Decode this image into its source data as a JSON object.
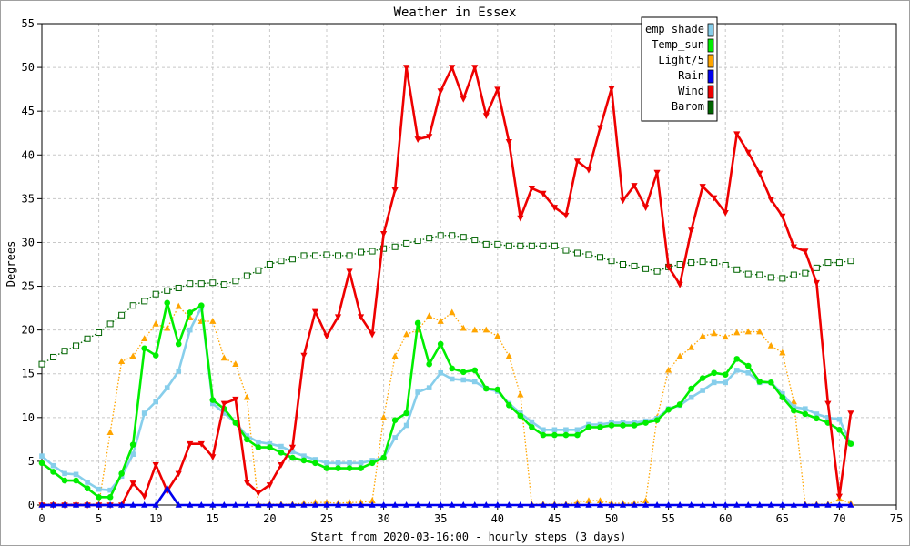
{
  "chart_data": {
    "type": "line",
    "title": "Weather in Essex",
    "xlabel": "Start from 2020-03-16:00 - hourly steps (3 days)",
    "ylabel": "Degrees",
    "xlim": [
      0,
      75
    ],
    "ylim": [
      0,
      55
    ],
    "xticks": [
      0,
      5,
      10,
      15,
      20,
      25,
      30,
      35,
      40,
      45,
      50,
      55,
      60,
      65,
      70,
      75
    ],
    "yticks": [
      0,
      5,
      10,
      15,
      20,
      25,
      30,
      35,
      40,
      45,
      50,
      55
    ],
    "grid": true,
    "legend_position": "top-right",
    "series": [
      {
        "name": "Temp_shade",
        "color": "#87ceeb",
        "marker": "square",
        "line_style": "solid",
        "values": [
          5.6,
          4.5,
          3.6,
          3.5,
          2.6,
          1.8,
          1.7,
          3.3,
          5.8,
          10.5,
          11.8,
          13.4,
          15.3,
          20.0,
          22.6,
          11.6,
          10.5,
          9.4,
          7.9,
          7.2,
          7.0,
          6.7,
          6.1,
          5.6,
          5.2,
          4.8,
          4.8,
          4.8,
          4.8,
          5.1,
          5.4,
          7.7,
          9.1,
          12.9,
          13.4,
          15.1,
          14.4,
          14.3,
          14.1,
          13.3,
          13.0,
          11.6,
          10.5,
          9.5,
          8.6,
          8.6,
          8.6,
          8.6,
          9.2,
          9.2,
          9.4,
          9.4,
          9.4,
          9.6,
          9.9,
          11.0,
          11.4,
          12.3,
          13.1,
          14.0,
          14.0,
          15.4,
          15.1,
          14.0,
          14.0,
          12.7,
          11.2,
          11.0,
          10.4,
          10.0,
          9.8,
          7.0
        ]
      },
      {
        "name": "Temp_sun",
        "color": "#00ee00",
        "marker": "circle",
        "line_style": "solid",
        "values": [
          4.8,
          3.8,
          2.8,
          2.8,
          1.9,
          0.9,
          0.9,
          3.6,
          6.9,
          17.9,
          17.1,
          23.1,
          18.4,
          22.0,
          22.8,
          12.0,
          11.0,
          9.4,
          7.5,
          6.6,
          6.6,
          6.0,
          5.4,
          5.1,
          4.8,
          4.2,
          4.2,
          4.2,
          4.2,
          4.8,
          5.4,
          9.7,
          10.5,
          20.8,
          16.1,
          18.4,
          15.6,
          15.2,
          15.4,
          13.3,
          13.2,
          11.4,
          10.2,
          8.9,
          8.0,
          8.0,
          8.0,
          8.0,
          8.9,
          8.9,
          9.1,
          9.1,
          9.1,
          9.4,
          9.7,
          10.9,
          11.5,
          13.3,
          14.5,
          15.1,
          14.9,
          16.7,
          15.9,
          14.1,
          14.0,
          12.3,
          10.8,
          10.4,
          9.9,
          9.4,
          8.6,
          7.0
        ]
      },
      {
        "name": "Light/5",
        "color": "#ffa500",
        "marker": "triangle",
        "line_style": "dotted",
        "values": [
          0.1,
          0.1,
          0.1,
          0.1,
          0.1,
          0.1,
          8.3,
          16.4,
          17.0,
          19.0,
          20.7,
          20.2,
          22.7,
          21.4,
          21.0,
          21.0,
          16.8,
          16.1,
          12.3,
          0.1,
          0.1,
          0.1,
          0.1,
          0.2,
          0.3,
          0.3,
          0.2,
          0.3,
          0.3,
          0.5,
          10.0,
          17.0,
          19.5,
          20.0,
          21.6,
          21.0,
          22.0,
          20.2,
          20.0,
          20.0,
          19.3,
          17.0,
          12.6,
          0.1,
          0.1,
          0.1,
          0.1,
          0.3,
          0.5,
          0.5,
          0.2,
          0.2,
          0.2,
          0.5,
          10.0,
          15.4,
          17.0,
          18.0,
          19.3,
          19.6,
          19.2,
          19.7,
          19.8,
          19.8,
          18.2,
          17.4,
          11.8,
          0.1,
          0.1,
          0.1,
          0.7,
          0.2
        ]
      },
      {
        "name": "Rain",
        "color": "#0000ee",
        "marker": "triangle",
        "line_style": "solid",
        "values": [
          0,
          0,
          0,
          0,
          0,
          0,
          0,
          0,
          0,
          0,
          0,
          1.9,
          0,
          0,
          0,
          0,
          0,
          0,
          0,
          0,
          0,
          0,
          0,
          0,
          0,
          0,
          0,
          0,
          0,
          0,
          0,
          0,
          0,
          0,
          0,
          0,
          0,
          0,
          0,
          0,
          0,
          0,
          0,
          0,
          0,
          0,
          0,
          0,
          0,
          0,
          0,
          0,
          0,
          0,
          0,
          0,
          0,
          0,
          0,
          0,
          0,
          0,
          0,
          0,
          0,
          0,
          0,
          0,
          0,
          0,
          0,
          0
        ]
      },
      {
        "name": "Wind",
        "color": "#ee0000",
        "marker": "triangle-down",
        "line_style": "solid",
        "values": [
          0,
          0,
          0,
          0,
          0,
          0,
          0,
          0,
          2.5,
          1.0,
          4.6,
          1.6,
          3.6,
          7.0,
          7.0,
          5.5,
          11.6,
          12.1,
          2.6,
          1.4,
          2.3,
          4.6,
          6.6,
          17.1,
          22.1,
          19.3,
          21.5,
          26.7,
          21.5,
          19.5,
          31.0,
          36.0,
          50.0,
          41.8,
          42.1,
          47.3,
          50.0,
          46.4,
          50.0,
          44.5,
          47.5,
          41.5,
          32.8,
          36.2,
          35.6,
          34.0,
          33.1,
          39.3,
          38.3,
          43.1,
          47.6,
          34.8,
          36.5,
          34.0,
          38.0,
          27.2,
          25.2,
          31.4,
          36.4,
          35.1,
          33.4,
          42.4,
          40.3,
          37.9,
          34.9,
          33.0,
          29.5,
          29.0,
          25.4,
          11.6,
          1.0,
          10.5
        ]
      },
      {
        "name": "Barom",
        "color": "#006400",
        "marker": "hollow-square",
        "line_style": "dotted",
        "values": [
          16.1,
          16.9,
          17.6,
          18.2,
          19.0,
          19.7,
          20.7,
          21.7,
          22.8,
          23.3,
          24.1,
          24.5,
          24.8,
          25.3,
          25.3,
          25.4,
          25.2,
          25.6,
          26.2,
          26.8,
          27.5,
          27.9,
          28.1,
          28.5,
          28.5,
          28.6,
          28.5,
          28.5,
          28.9,
          29.0,
          29.3,
          29.5,
          29.9,
          30.2,
          30.5,
          30.8,
          30.8,
          30.6,
          30.3,
          29.8,
          29.8,
          29.6,
          29.6,
          29.6,
          29.6,
          29.6,
          29.1,
          28.8,
          28.6,
          28.3,
          27.9,
          27.5,
          27.3,
          27.0,
          26.7,
          27.2,
          27.5,
          27.7,
          27.8,
          27.7,
          27.4,
          26.9,
          26.4,
          26.3,
          26.0,
          25.9,
          26.3,
          26.5,
          27.1,
          27.7,
          27.7,
          27.9
        ]
      }
    ]
  }
}
